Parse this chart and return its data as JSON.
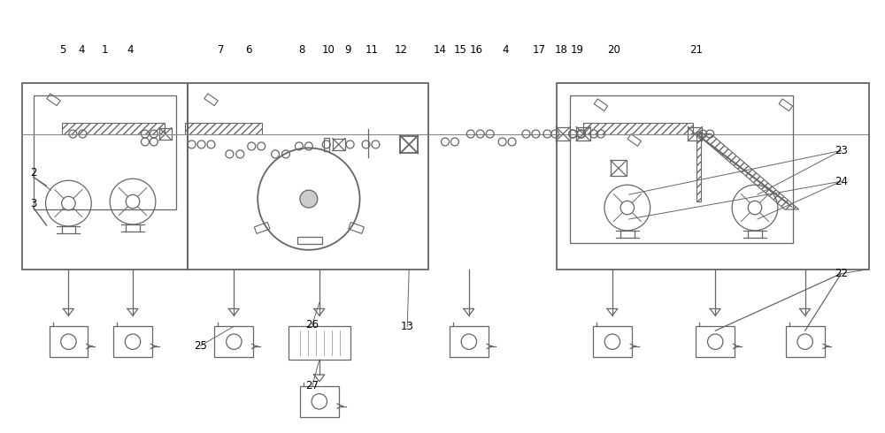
{
  "fig_width": 10.0,
  "fig_height": 4.9,
  "dpi": 100,
  "lc": "#666666",
  "bg": "#ffffff",
  "fc": "#000000",
  "fs": 8.5,
  "lw": 0.9,
  "lw2": 1.3,
  "labels": [
    [
      68,
      55,
      "5"
    ],
    [
      90,
      55,
      "4"
    ],
    [
      116,
      55,
      "1"
    ],
    [
      145,
      55,
      "4"
    ],
    [
      35,
      195,
      "2"
    ],
    [
      35,
      230,
      "3"
    ],
    [
      248,
      55,
      "7"
    ],
    [
      280,
      55,
      "6"
    ],
    [
      340,
      55,
      "8"
    ],
    [
      370,
      55,
      "10"
    ],
    [
      392,
      55,
      "9"
    ],
    [
      420,
      55,
      "11"
    ],
    [
      453,
      55,
      "12"
    ],
    [
      497,
      55,
      "14"
    ],
    [
      520,
      55,
      "15"
    ],
    [
      538,
      55,
      "16"
    ],
    [
      572,
      55,
      "4"
    ],
    [
      610,
      55,
      "17"
    ],
    [
      635,
      55,
      "18"
    ],
    [
      653,
      55,
      "19"
    ],
    [
      695,
      55,
      "20"
    ],
    [
      788,
      55,
      "21"
    ],
    [
      953,
      170,
      "23"
    ],
    [
      953,
      205,
      "24"
    ],
    [
      953,
      310,
      "22"
    ],
    [
      225,
      392,
      "25"
    ],
    [
      352,
      368,
      "26"
    ],
    [
      352,
      438,
      "27"
    ],
    [
      460,
      370,
      "13"
    ]
  ]
}
